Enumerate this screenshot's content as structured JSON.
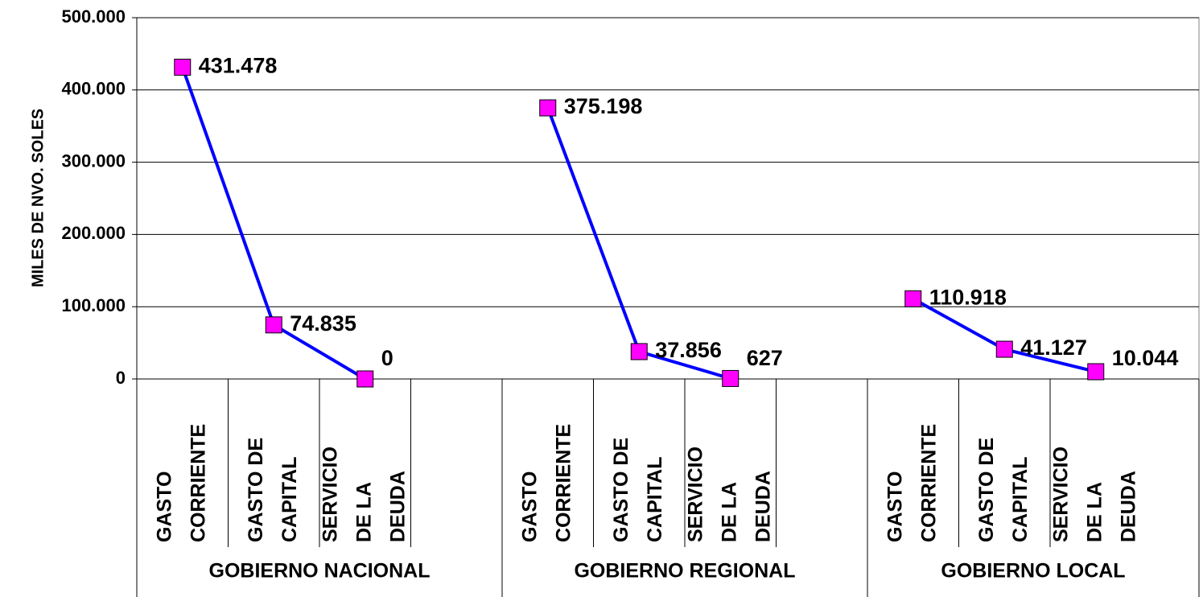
{
  "chart_data": {
    "type": "line",
    "ylabel": "MILES DE NVO.  SOLES",
    "ylim": [
      0,
      500000
    ],
    "yticks": [
      0,
      {
        "value": 100000,
        "label": "100.000"
      },
      {
        "value": 200000,
        "label": "200.000"
      },
      {
        "value": 300000,
        "label": "300.000"
      },
      {
        "value": 400000,
        "label": "400.000"
      },
      {
        "value": 500000,
        "label": "500.000"
      }
    ],
    "grid": true,
    "line_color": "#0000ff",
    "marker_color": "#ff00ff",
    "groups": [
      {
        "name": "GOBIERNO NACIONAL",
        "categories": [
          [
            "GASTO",
            "CORRIENTE"
          ],
          [
            "GASTO DE",
            "CAPITAL"
          ],
          [
            "SERVICIO",
            "DE LA",
            "DEUDA"
          ],
          null
        ],
        "values": [
          431478,
          74835,
          0,
          null
        ],
        "value_labels": [
          "431.478",
          "74.835",
          "0",
          null
        ]
      },
      {
        "name": "GOBIERNO REGIONAL",
        "categories": [
          [
            "GASTO",
            "CORRIENTE"
          ],
          [
            "GASTO DE",
            "CAPITAL"
          ],
          [
            "SERVICIO",
            "DE LA",
            "DEUDA"
          ],
          null
        ],
        "values": [
          375198,
          37856,
          627,
          null
        ],
        "value_labels": [
          "375.198",
          "37.856",
          "627",
          null
        ]
      },
      {
        "name": "GOBIERNO LOCAL",
        "categories": [
          [
            "GASTO",
            "CORRIENTE"
          ],
          [
            "GASTO DE",
            "CAPITAL"
          ],
          [
            "SERVICIO",
            "DE LA",
            "DEUDA"
          ]
        ],
        "values": [
          110918,
          41127,
          10044
        ],
        "value_labels": [
          "110.918",
          "41.127",
          "10.044"
        ]
      }
    ]
  }
}
